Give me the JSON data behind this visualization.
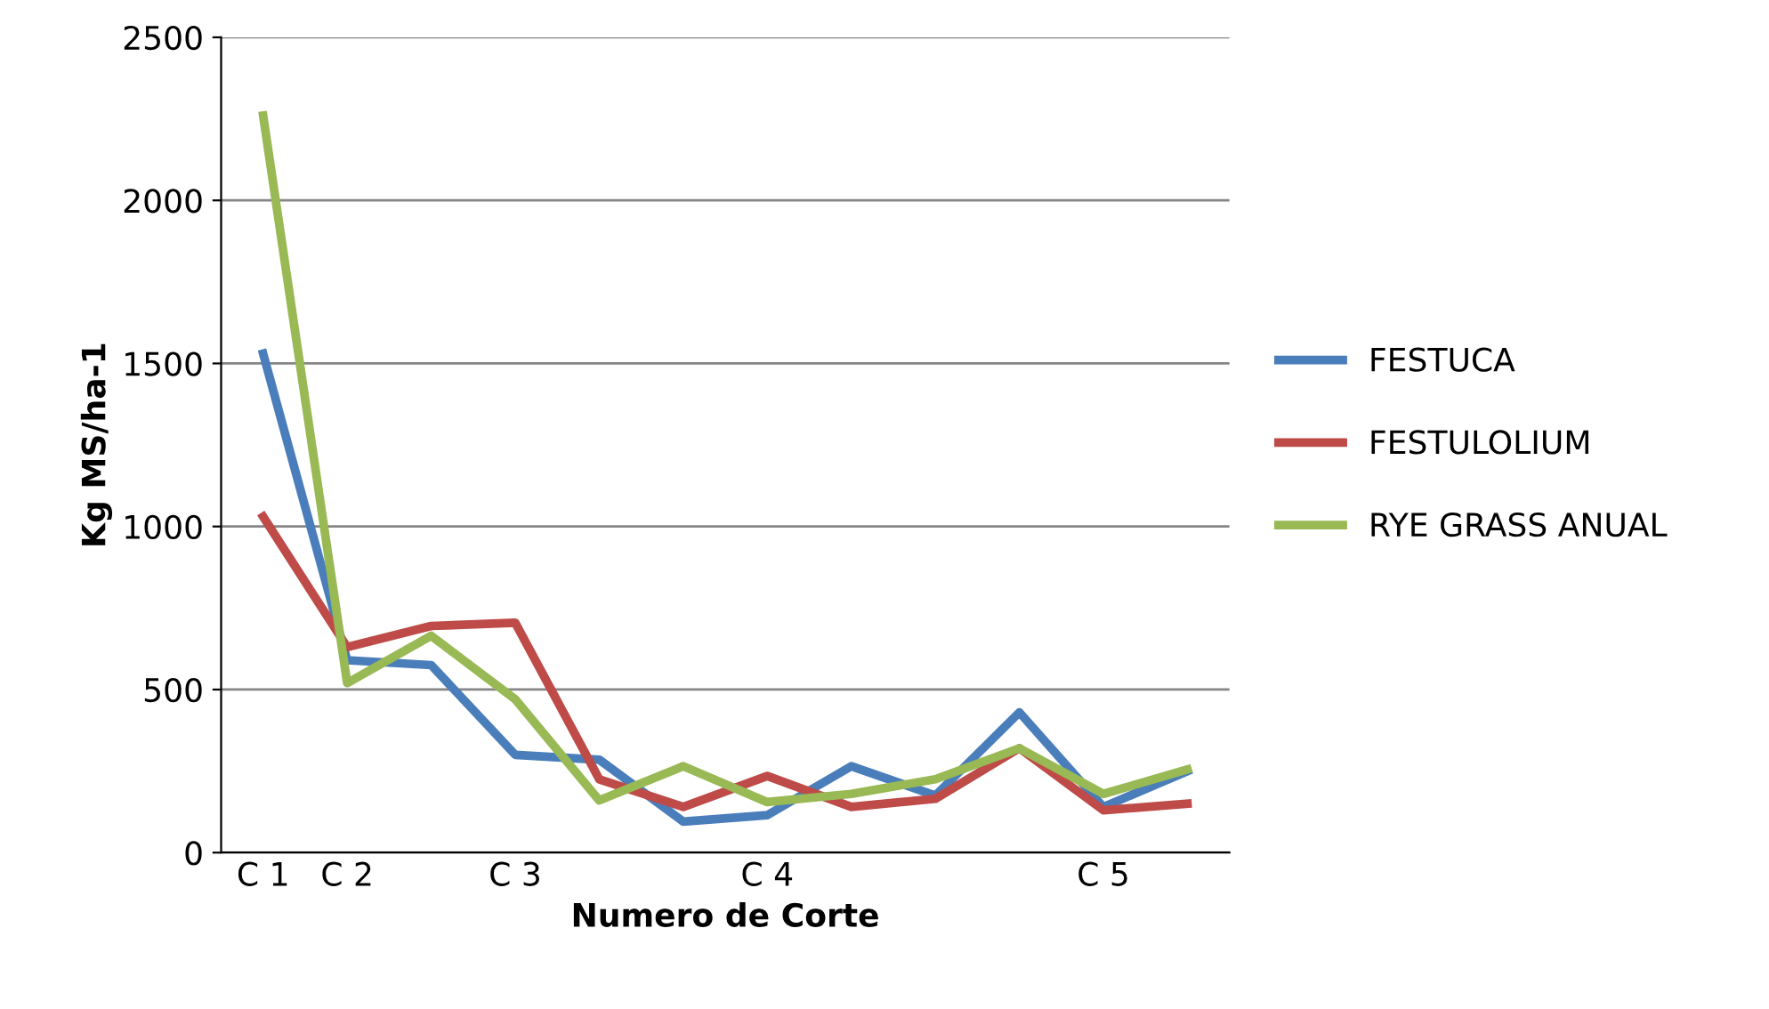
{
  "chart_data": {
    "type": "line",
    "xlabel": "Numero de Corte",
    "ylabel": "Kg MS/ha-1",
    "categories": [
      "C 1",
      "C 2",
      null,
      "C 3",
      null,
      null,
      "C 4",
      null,
      null,
      null,
      "C 5",
      null
    ],
    "series": [
      {
        "name": "FESTUCA",
        "color": "#4a7ebb",
        "values": [
          1530,
          590,
          575,
          300,
          285,
          95,
          115,
          265,
          175,
          430,
          140,
          250
        ]
      },
      {
        "name": "FESTULOLIUM",
        "color": "#be4b48",
        "values": [
          1030,
          630,
          695,
          705,
          225,
          140,
          235,
          140,
          165,
          320,
          130,
          150
        ]
      },
      {
        "name": "RYE GRASS ANUAL",
        "color": "#98b954",
        "values": [
          2260,
          520,
          665,
          470,
          160,
          265,
          155,
          180,
          225,
          320,
          180,
          255
        ]
      }
    ],
    "ylim": [
      0,
      2500
    ],
    "yticks": [
      0,
      500,
      1000,
      1500,
      2000,
      2500
    ],
    "grid": "y",
    "legend": "right",
    "marker": "none",
    "line_style": "solid"
  }
}
